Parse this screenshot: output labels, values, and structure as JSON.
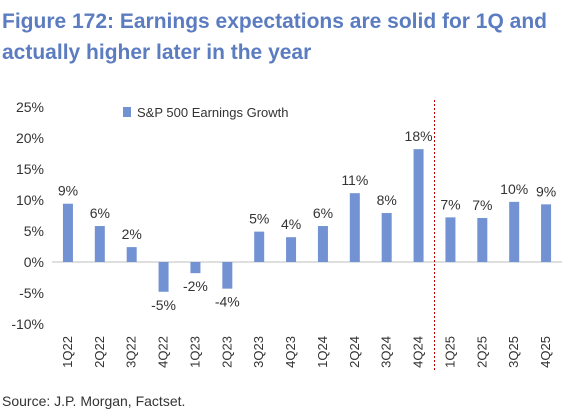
{
  "title": "Figure 172: Earnings expectations are solid for 1Q and actually higher later in the year",
  "source": "Source: J.P. Morgan, Factset.",
  "chart_data": {
    "type": "bar",
    "categories": [
      "1Q22",
      "2Q22",
      "3Q22",
      "4Q22",
      "1Q23",
      "2Q23",
      "3Q23",
      "4Q23",
      "1Q24",
      "2Q24",
      "3Q24",
      "4Q24",
      "1Q25",
      "2Q25",
      "3Q25",
      "4Q25"
    ],
    "series": [
      {
        "name": "S&P 500 Earnings Growth",
        "values": [
          9.4,
          5.8,
          2.4,
          -4.8,
          -1.8,
          -4.3,
          4.9,
          4.0,
          5.8,
          11.1,
          7.9,
          18.2,
          7.2,
          7.1,
          9.7,
          9.3
        ],
        "labels": [
          "9%",
          "6%",
          "2%",
          "-5%",
          "-2%",
          "-4%",
          "5%",
          "4%",
          "6%",
          "11%",
          "8%",
          "18%",
          "7%",
          "7%",
          "10%",
          "9%"
        ]
      }
    ],
    "ylim": [
      -10,
      25
    ],
    "yticks": [
      -10,
      -5,
      0,
      5,
      10,
      15,
      20,
      25
    ],
    "ytick_labels": [
      "-10%",
      "-5%",
      "0%",
      "5%",
      "10%",
      "15%",
      "20%",
      "25%"
    ],
    "xlabel": "",
    "ylabel": "",
    "grid": false,
    "legend": "top-left",
    "divider_after": "4Q24",
    "colors": {
      "bar": "#7292d3",
      "divider": "#c00000",
      "title": "#5b7cc0",
      "axis": "#bfbfbf"
    }
  }
}
